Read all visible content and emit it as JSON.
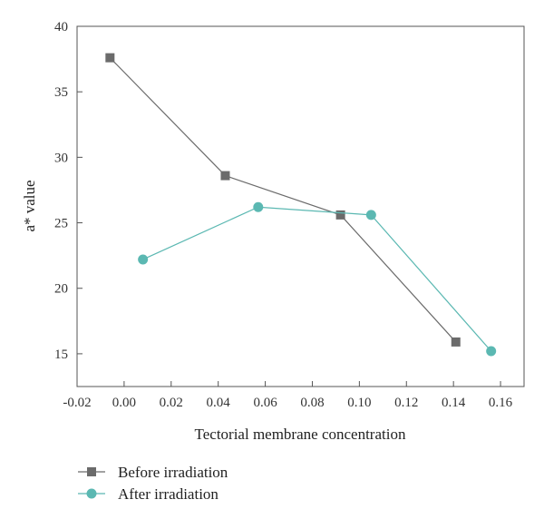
{
  "chart_data": {
    "type": "line",
    "xlabel": "Tectorial membrane concentration",
    "ylabel": "a* value",
    "xlim": [
      -0.02,
      0.17
    ],
    "ylim": [
      12.5,
      40
    ],
    "xticks": [
      -0.02,
      0.0,
      0.02,
      0.04,
      0.06,
      0.08,
      0.1,
      0.12,
      0.14,
      0.16
    ],
    "xtick_labels": [
      "-0.02",
      "0.00",
      "0.02",
      "0.04",
      "0.06",
      "0.08",
      "0.10",
      "0.12",
      "0.14",
      "0.16"
    ],
    "yticks": [
      15,
      20,
      25,
      30,
      35,
      40
    ],
    "ytick_labels": [
      "15",
      "20",
      "25",
      "30",
      "35",
      "40"
    ],
    "grid": false,
    "legend_position": "bottom-left, below plot",
    "series": [
      {
        "name": "Before irradiation",
        "marker": "square",
        "color": "#6b6b6b",
        "x": [
          -0.006,
          0.043,
          0.092,
          0.141
        ],
        "y": [
          37.6,
          28.6,
          25.6,
          15.9
        ]
      },
      {
        "name": "After irradiation",
        "marker": "circle",
        "color": "#5bb8b2",
        "x": [
          0.008,
          0.057,
          0.105,
          0.156
        ],
        "y": [
          22.2,
          26.2,
          25.6,
          15.2
        ]
      }
    ]
  }
}
